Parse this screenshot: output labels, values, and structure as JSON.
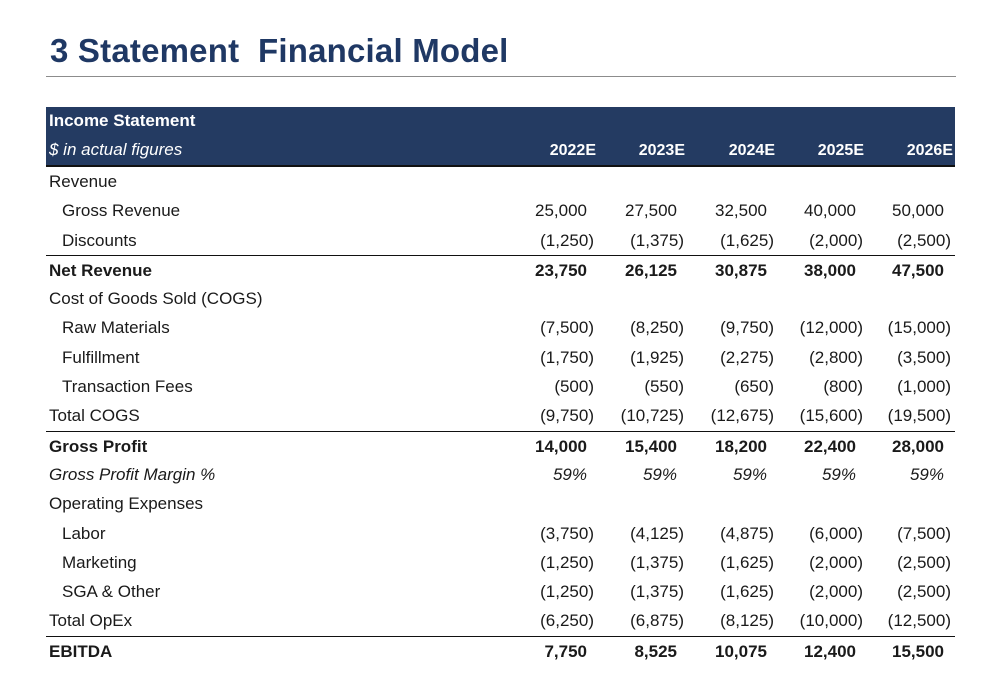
{
  "title": "3 Statement  Financial Model",
  "header": {
    "title": "Income Statement",
    "subtitle": "$ in actual figures",
    "years": [
      "2022E",
      "2023E",
      "2024E",
      "2025E",
      "2026E"
    ]
  },
  "rows": [
    {
      "label": "Revenue",
      "values": [
        "",
        "",
        "",
        "",
        ""
      ]
    },
    {
      "label": "Gross Revenue",
      "values": [
        "25,000",
        "27,500",
        "32,500",
        "40,000",
        "50,000"
      ]
    },
    {
      "label": "Discounts",
      "values": [
        "(1,250)",
        "(1,375)",
        "(1,625)",
        "(2,000)",
        "(2,500)"
      ]
    },
    {
      "label": "Net Revenue",
      "values": [
        "23,750",
        "26,125",
        "30,875",
        "38,000",
        "47,500"
      ]
    },
    {
      "label": "Cost of Goods Sold (COGS)",
      "values": [
        "",
        "",
        "",
        "",
        ""
      ]
    },
    {
      "label": "Raw Materials",
      "values": [
        "(7,500)",
        "(8,250)",
        "(9,750)",
        "(12,000)",
        "(15,000)"
      ]
    },
    {
      "label": "Fulfillment",
      "values": [
        "(1,750)",
        "(1,925)",
        "(2,275)",
        "(2,800)",
        "(3,500)"
      ]
    },
    {
      "label": "Transaction Fees",
      "values": [
        "(500)",
        "(550)",
        "(650)",
        "(800)",
        "(1,000)"
      ]
    },
    {
      "label": "Total COGS",
      "values": [
        "(9,750)",
        "(10,725)",
        "(12,675)",
        "(15,600)",
        "(19,500)"
      ]
    },
    {
      "label": "Gross Profit",
      "values": [
        "14,000",
        "15,400",
        "18,200",
        "22,400",
        "28,000"
      ]
    },
    {
      "label": "Gross Profit Margin %",
      "values": [
        "59%",
        "59%",
        "59%",
        "59%",
        "59%"
      ]
    },
    {
      "label": "Operating Expenses",
      "values": [
        "",
        "",
        "",
        "",
        ""
      ]
    },
    {
      "label": "Labor",
      "values": [
        "(3,750)",
        "(4,125)",
        "(4,875)",
        "(6,000)",
        "(7,500)"
      ]
    },
    {
      "label": "Marketing",
      "values": [
        "(1,250)",
        "(1,375)",
        "(1,625)",
        "(2,000)",
        "(2,500)"
      ]
    },
    {
      "label": "SGA & Other",
      "values": [
        "(1,250)",
        "(1,375)",
        "(1,625)",
        "(2,000)",
        "(2,500)"
      ]
    },
    {
      "label": "Total OpEx",
      "values": [
        "(6,250)",
        "(6,875)",
        "(8,125)",
        "(10,000)",
        "(12,500)"
      ]
    },
    {
      "label": "EBITDA",
      "values": [
        "7,750",
        "8,525",
        "10,075",
        "12,400",
        "15,500"
      ]
    }
  ]
}
